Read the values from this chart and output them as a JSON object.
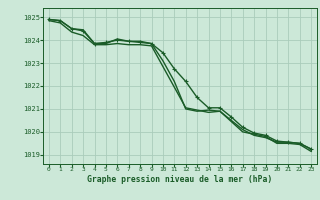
{
  "title": "Graphe pression niveau de la mer (hPa)",
  "background_color": "#cce8d8",
  "grid_color": "#aaccbb",
  "line_color": "#1a5c28",
  "xlim": [
    -0.5,
    23.5
  ],
  "ylim": [
    1018.6,
    1025.4
  ],
  "yticks": [
    1019,
    1020,
    1021,
    1022,
    1023,
    1024,
    1025
  ],
  "xticks": [
    0,
    1,
    2,
    3,
    4,
    5,
    6,
    7,
    8,
    9,
    10,
    11,
    12,
    13,
    14,
    15,
    16,
    17,
    18,
    19,
    20,
    21,
    22,
    23
  ],
  "line1_x": [
    0,
    1,
    2,
    3,
    4,
    5,
    6,
    7,
    8,
    9,
    10,
    11,
    12,
    13,
    14,
    15,
    16,
    17,
    18,
    19,
    20,
    21,
    22,
    23
  ],
  "line1_y": [
    1024.9,
    1024.85,
    1024.5,
    1024.45,
    1023.85,
    1023.85,
    1024.05,
    1023.95,
    1023.95,
    1023.85,
    1023.1,
    1022.2,
    1021.0,
    1020.9,
    1020.95,
    1020.9,
    1020.5,
    1020.1,
    1019.85,
    1019.75,
    1019.55,
    1019.55,
    1019.5,
    1019.25
  ],
  "line2_x": [
    0,
    1,
    2,
    3,
    4,
    5,
    6,
    7,
    8,
    9,
    10,
    11,
    12,
    13,
    14,
    15,
    16,
    17,
    18,
    19,
    20,
    21,
    22,
    23
  ],
  "line2_y": [
    1024.9,
    1024.85,
    1024.5,
    1024.4,
    1023.85,
    1023.9,
    1024.0,
    1023.95,
    1023.9,
    1023.85,
    1023.45,
    1022.75,
    1022.2,
    1021.5,
    1021.05,
    1021.05,
    1020.65,
    1020.2,
    1019.95,
    1019.85,
    1019.6,
    1019.55,
    1019.5,
    1019.25
  ],
  "line3_x": [
    0,
    1,
    2,
    3,
    4,
    5,
    6,
    7,
    8,
    9,
    10,
    11,
    12,
    13,
    14,
    15,
    16,
    17,
    18,
    19,
    20,
    21,
    22,
    23
  ],
  "line3_y": [
    1024.85,
    1024.75,
    1024.35,
    1024.2,
    1023.8,
    1023.8,
    1023.85,
    1023.8,
    1023.8,
    1023.75,
    1022.85,
    1021.95,
    1021.05,
    1020.95,
    1020.85,
    1020.9,
    1020.45,
    1020.0,
    1019.9,
    1019.8,
    1019.5,
    1019.5,
    1019.45,
    1019.15
  ]
}
